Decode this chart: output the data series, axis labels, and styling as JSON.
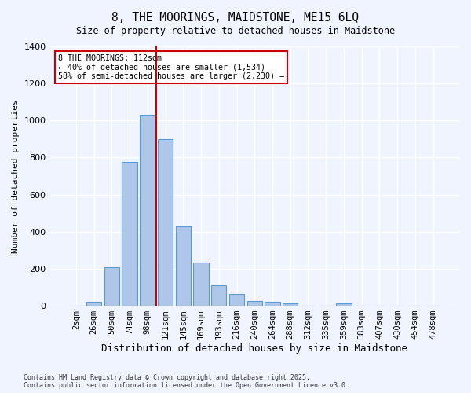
{
  "title_line1": "8, THE MOORINGS, MAIDSTONE, ME15 6LQ",
  "title_line2": "Size of property relative to detached houses in Maidstone",
  "xlabel": "Distribution of detached houses by size in Maidstone",
  "ylabel": "Number of detached properties",
  "footer": "Contains HM Land Registry data © Crown copyright and database right 2025.\nContains public sector information licensed under the Open Government Licence v3.0.",
  "categories": [
    "2sqm",
    "26sqm",
    "50sqm",
    "74sqm",
    "98sqm",
    "121sqm",
    "145sqm",
    "169sqm",
    "193sqm",
    "216sqm",
    "240sqm",
    "264sqm",
    "288sqm",
    "312sqm",
    "335sqm",
    "359sqm",
    "383sqm",
    "407sqm",
    "430sqm",
    "454sqm",
    "478sqm"
  ],
  "values": [
    0,
    20,
    210,
    775,
    1030,
    900,
    430,
    235,
    110,
    65,
    25,
    20,
    15,
    0,
    0,
    15,
    0,
    0,
    0,
    0,
    0
  ],
  "bar_color": "#aec6e8",
  "bar_edge_color": "#5b9bd5",
  "background_color": "#f0f4ff",
  "grid_color": "#ffffff",
  "vline_x": 4,
  "vline_color": "#cc0000",
  "annotation_text": "8 THE MOORINGS: 112sqm\n← 40% of detached houses are smaller (1,534)\n58% of semi-detached houses are larger (2,230) →",
  "annotation_box_color": "#cc0000",
  "ylim": [
    0,
    1400
  ],
  "yticks": [
    0,
    200,
    400,
    600,
    800,
    1000,
    1200,
    1400
  ]
}
